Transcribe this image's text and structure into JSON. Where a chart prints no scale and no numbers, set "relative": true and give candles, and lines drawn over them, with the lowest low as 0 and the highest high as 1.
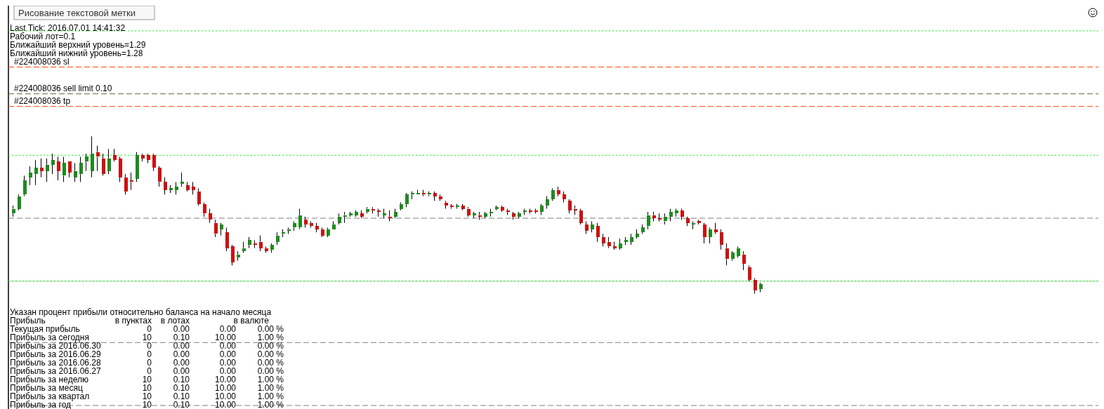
{
  "chart_data": {
    "type": "candlestick",
    "relative": true,
    "categories": [
      null,
      null,
      null,
      null,
      null,
      null,
      null,
      null,
      null,
      null,
      null,
      null,
      null,
      null,
      null,
      null,
      null,
      null,
      null,
      null,
      null,
      null,
      null,
      null,
      null,
      null,
      null,
      null,
      null,
      null,
      null,
      null,
      null,
      null,
      null,
      null,
      null,
      null,
      null,
      null,
      null,
      null,
      null,
      null,
      null,
      null,
      null,
      null,
      null,
      null,
      null,
      null,
      null,
      null,
      null,
      null,
      null,
      null,
      null,
      null,
      null,
      null,
      null,
      null,
      null,
      null,
      null,
      null,
      null,
      null,
      null,
      null,
      null,
      null,
      null,
      null,
      null,
      null,
      null,
      null,
      null,
      null,
      null,
      null,
      null,
      null,
      null,
      null,
      null,
      null,
      null,
      null,
      null,
      null,
      null,
      null,
      null,
      null,
      null,
      null,
      null,
      null,
      null,
      null,
      null,
      null,
      null,
      null,
      null,
      null,
      null,
      null,
      null,
      null,
      null,
      null,
      null,
      null,
      null,
      null,
      null,
      null,
      null,
      null,
      null,
      null,
      null,
      null,
      null,
      null,
      null,
      null,
      null,
      null
    ],
    "ohlc": [
      [
        0.51,
        0.56,
        0.49,
        0.54
      ],
      [
        0.54,
        0.63,
        0.53,
        0.62
      ],
      [
        0.63,
        0.75,
        0.62,
        0.72
      ],
      [
        0.74,
        0.81,
        0.69,
        0.77
      ],
      [
        0.76,
        0.85,
        0.69,
        0.8
      ],
      [
        0.8,
        0.86,
        0.74,
        0.78
      ],
      [
        0.78,
        0.86,
        0.71,
        0.82
      ],
      [
        0.82,
        0.89,
        0.76,
        0.85
      ],
      [
        0.84,
        0.87,
        0.72,
        0.78
      ],
      [
        0.75,
        0.87,
        0.71,
        0.83
      ],
      [
        0.84,
        0.84,
        0.74,
        0.77
      ],
      [
        0.74,
        0.83,
        0.71,
        0.78
      ],
      [
        0.76,
        0.87,
        0.71,
        0.83
      ],
      [
        0.84,
        0.89,
        0.78,
        0.87
      ],
      [
        0.78,
        1.0,
        0.74,
        0.89
      ],
      [
        0.9,
        0.94,
        0.78,
        0.87
      ],
      [
        0.86,
        0.89,
        0.75,
        0.76
      ],
      [
        0.78,
        0.92,
        0.76,
        0.86
      ],
      [
        0.88,
        0.92,
        0.84,
        0.85
      ],
      [
        0.86,
        0.87,
        0.71,
        0.74
      ],
      [
        0.74,
        0.76,
        0.63,
        0.65
      ],
      [
        0.72,
        0.77,
        0.66,
        0.71
      ],
      [
        0.73,
        0.9,
        0.71,
        0.88
      ],
      [
        0.88,
        0.89,
        0.84,
        0.86
      ],
      [
        0.88,
        0.89,
        0.83,
        0.85
      ],
      [
        0.88,
        0.89,
        0.78,
        0.8
      ],
      [
        0.8,
        0.81,
        0.68,
        0.71
      ],
      [
        0.71,
        0.74,
        0.63,
        0.66
      ],
      [
        0.66,
        0.69,
        0.64,
        0.67
      ],
      [
        0.66,
        0.71,
        0.63,
        0.68
      ],
      [
        0.7,
        0.77,
        0.68,
        0.71
      ],
      [
        0.69,
        0.71,
        0.65,
        0.66
      ],
      [
        0.68,
        0.71,
        0.63,
        0.66
      ],
      [
        0.65,
        0.67,
        0.56,
        0.57
      ],
      [
        0.57,
        0.58,
        0.49,
        0.51
      ],
      [
        0.51,
        0.54,
        0.45,
        0.47
      ],
      [
        0.45,
        0.47,
        0.36,
        0.38
      ],
      [
        0.41,
        0.45,
        0.37,
        0.44
      ],
      [
        0.39,
        0.42,
        0.27,
        0.29
      ],
      [
        0.3,
        0.31,
        0.18,
        0.2
      ],
      [
        0.23,
        0.27,
        0.21,
        0.25
      ],
      [
        0.27,
        0.33,
        0.26,
        0.29
      ],
      [
        0.31,
        0.36,
        0.29,
        0.34
      ],
      [
        0.32,
        0.34,
        0.29,
        0.31
      ],
      [
        0.33,
        0.37,
        0.27,
        0.29
      ],
      [
        0.29,
        0.3,
        0.26,
        0.27
      ],
      [
        0.28,
        0.32,
        0.26,
        0.31
      ],
      [
        0.33,
        0.39,
        0.31,
        0.37
      ],
      [
        0.38,
        0.41,
        0.36,
        0.39
      ],
      [
        0.4,
        0.42,
        0.38,
        0.41
      ],
      [
        0.42,
        0.46,
        0.4,
        0.45
      ],
      [
        0.42,
        0.54,
        0.41,
        0.5
      ],
      [
        0.47,
        0.49,
        0.42,
        0.44
      ],
      [
        0.45,
        0.46,
        0.42,
        0.43
      ],
      [
        0.43,
        0.45,
        0.39,
        0.41
      ],
      [
        0.41,
        0.42,
        0.36,
        0.37
      ],
      [
        0.37,
        0.42,
        0.36,
        0.41
      ],
      [
        0.41,
        0.46,
        0.41,
        0.44
      ],
      [
        0.45,
        0.51,
        0.44,
        0.49
      ],
      [
        0.49,
        0.52,
        0.45,
        0.5
      ],
      [
        0.5,
        0.52,
        0.49,
        0.51
      ],
      [
        0.5,
        0.53,
        0.49,
        0.52
      ],
      [
        0.51,
        0.53,
        0.48,
        0.49
      ],
      [
        0.52,
        0.55,
        0.51,
        0.54
      ],
      [
        0.54,
        0.55,
        0.51,
        0.53
      ],
      [
        0.53,
        0.54,
        0.49,
        0.52
      ],
      [
        0.5,
        0.54,
        0.48,
        0.51
      ],
      [
        0.49,
        0.53,
        0.46,
        0.48
      ],
      [
        0.49,
        0.54,
        0.48,
        0.52
      ],
      [
        0.54,
        0.58,
        0.53,
        0.57
      ],
      [
        0.57,
        0.64,
        0.55,
        0.63
      ],
      [
        0.63,
        0.65,
        0.6,
        0.64
      ],
      [
        0.63,
        0.66,
        0.63,
        0.64
      ],
      [
        0.64,
        0.66,
        0.62,
        0.63
      ],
      [
        0.63,
        0.65,
        0.62,
        0.64
      ],
      [
        0.64,
        0.65,
        0.59,
        0.62
      ],
      [
        0.62,
        0.63,
        0.59,
        0.6
      ],
      [
        0.58,
        0.59,
        0.54,
        0.56
      ],
      [
        0.56,
        0.57,
        0.54,
        0.55
      ],
      [
        0.55,
        0.57,
        0.54,
        0.56
      ],
      [
        0.56,
        0.57,
        0.53,
        0.54
      ],
      [
        0.54,
        0.55,
        0.49,
        0.5
      ],
      [
        0.5,
        0.52,
        0.48,
        0.51
      ],
      [
        0.5,
        0.52,
        0.47,
        0.49
      ],
      [
        0.49,
        0.52,
        0.48,
        0.51
      ],
      [
        0.51,
        0.54,
        0.49,
        0.52
      ],
      [
        0.54,
        0.56,
        0.53,
        0.55
      ],
      [
        0.55,
        0.56,
        0.52,
        0.53
      ],
      [
        0.53,
        0.54,
        0.5,
        0.52
      ],
      [
        0.51,
        0.52,
        0.47,
        0.49
      ],
      [
        0.49,
        0.52,
        0.48,
        0.51
      ],
      [
        0.52,
        0.54,
        0.5,
        0.53
      ],
      [
        0.53,
        0.54,
        0.51,
        0.52
      ],
      [
        0.53,
        0.54,
        0.51,
        0.52
      ],
      [
        0.52,
        0.57,
        0.5,
        0.56
      ],
      [
        0.56,
        0.62,
        0.54,
        0.6
      ],
      [
        0.6,
        0.67,
        0.59,
        0.66
      ],
      [
        0.66,
        0.68,
        0.62,
        0.63
      ],
      [
        0.63,
        0.65,
        0.58,
        0.6
      ],
      [
        0.59,
        0.6,
        0.51,
        0.53
      ],
      [
        0.54,
        0.56,
        0.5,
        0.53
      ],
      [
        0.53,
        0.54,
        0.44,
        0.45
      ],
      [
        0.44,
        0.46,
        0.38,
        0.4
      ],
      [
        0.41,
        0.46,
        0.39,
        0.44
      ],
      [
        0.43,
        0.45,
        0.33,
        0.36
      ],
      [
        0.36,
        0.38,
        0.3,
        0.32
      ],
      [
        0.33,
        0.36,
        0.29,
        0.3
      ],
      [
        0.3,
        0.33,
        0.28,
        0.29
      ],
      [
        0.29,
        0.35,
        0.28,
        0.32
      ],
      [
        0.33,
        0.36,
        0.31,
        0.34
      ],
      [
        0.33,
        0.38,
        0.31,
        0.36
      ],
      [
        0.36,
        0.41,
        0.35,
        0.38
      ],
      [
        0.39,
        0.44,
        0.38,
        0.42
      ],
      [
        0.43,
        0.52,
        0.41,
        0.5
      ],
      [
        0.5,
        0.52,
        0.46,
        0.48
      ],
      [
        0.48,
        0.51,
        0.46,
        0.47
      ],
      [
        0.46,
        0.51,
        0.44,
        0.49
      ],
      [
        0.49,
        0.54,
        0.46,
        0.52
      ],
      [
        0.51,
        0.54,
        0.49,
        0.53
      ],
      [
        0.53,
        0.54,
        0.47,
        0.49
      ],
      [
        0.48,
        0.49,
        0.43,
        0.45
      ],
      [
        0.44,
        0.46,
        0.41,
        0.45
      ],
      [
        0.46,
        0.47,
        0.44,
        0.45
      ],
      [
        0.44,
        0.45,
        0.32,
        0.36
      ],
      [
        0.36,
        0.42,
        0.32,
        0.41
      ],
      [
        0.41,
        0.45,
        0.38,
        0.39
      ],
      [
        0.39,
        0.41,
        0.28,
        0.31
      ],
      [
        0.29,
        0.32,
        0.18,
        0.22
      ],
      [
        0.22,
        0.27,
        0.21,
        0.26
      ],
      [
        0.24,
        0.3,
        0.23,
        0.29
      ],
      [
        0.25,
        0.27,
        0.15,
        0.19
      ],
      [
        0.17,
        0.18,
        0.08,
        0.09
      ],
      [
        0.09,
        0.1,
        0,
        0.02
      ],
      [
        0.03,
        0.07,
        0.01,
        0.06
      ]
    ],
    "ref_lines": [
      {
        "axis": "y",
        "value": 1.67,
        "color": "#00ff00",
        "line_style": "dotted"
      },
      {
        "axis": "y",
        "value": 1.44,
        "label": "#224008036 sl",
        "color": "#ff4500",
        "line_style": "dashed"
      },
      {
        "axis": "y",
        "value": 1.27,
        "label": "#224008036 sell limit 0.10",
        "color": "#556b2f",
        "line_style": "dashed"
      },
      {
        "axis": "y",
        "value": 1.19,
        "label": "#224008036 tp",
        "color": "#ff4500",
        "line_style": "dashed"
      },
      {
        "axis": "y",
        "value": 0.88,
        "color": "#00ff00",
        "line_style": "dotted"
      },
      {
        "axis": "y",
        "value": 0.48,
        "color": "#808080",
        "line_style": "dashed"
      },
      {
        "axis": "y",
        "value": 0.08,
        "color": "#c0c0c0",
        "line_style": "solid"
      },
      {
        "axis": "y",
        "value": 0.08,
        "color": "#00ff00",
        "line_style": "dotted"
      },
      {
        "axis": "y",
        "value": -0.31,
        "color": "#808080",
        "line_style": "dashed"
      },
      {
        "axis": "y",
        "value": -0.71,
        "color": "#808080",
        "line_style": "dashed"
      }
    ],
    "annotations": [
      "Рисование текстовой метки",
      "Last Tick: 2016.07.01 14:41:32",
      "Рабочий лот=0.1",
      "Ближайший верхний уровень=1.29",
      "Ближайший нижний уровень=1.28",
      "Указан процент прибыли относительно баланса на начало месяца",
      "Прибыль\tв пунктах\tв лотах\tв валюте",
      "Текущая прибыль\t0\t0.00\t0.00\t0.00 %",
      "Прибыль за сегодня\t10\t0.10\t10.00\t1.00 %",
      "Прибыль за 2016.06.30\t0\t0.00\t0.00\t0.00 %",
      "Прибыль за 2016.06.29\t0\t0.00\t0.00\t0.00 %",
      "Прибыль за 2016.06.28\t0\t0.00\t0.00\t0.00 %",
      "Прибыль за 2016.06.27\t0\t0.00\t0.00\t0.00 %",
      "Прибыль за неделю\t10\t0.10\t10.00\t1.00 %",
      "Прибыль за месяц\t10\t0.10\t10.00\t1.00 %",
      "Прибыль за квартал\t10\t0.10\t10.00\t1.00 %",
      "Прибыль за год\t10\t0.10\t10.00\t1.00 %"
    ]
  }
}
